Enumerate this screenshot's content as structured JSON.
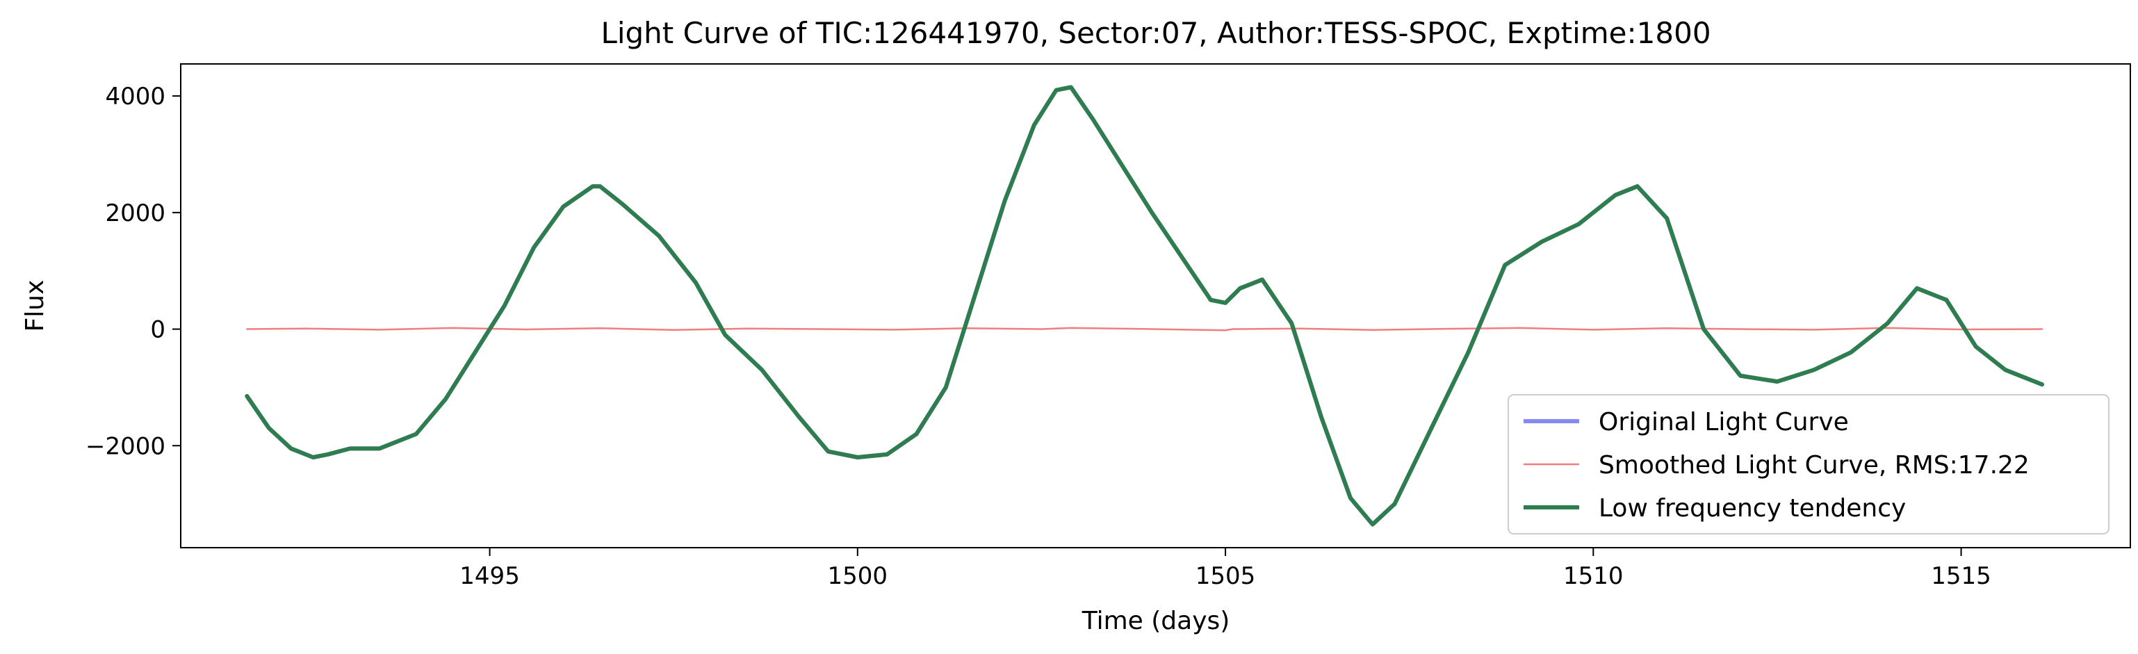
{
  "chart_data": {
    "type": "line",
    "title": "Light Curve of TIC:126441970, Sector:07, Author:TESS-SPOC, Exptime:1800",
    "xlabel": "Time (days)",
    "ylabel": "Flux",
    "xlim": [
      1490.8,
      1517.3
    ],
    "ylim": [
      -3750,
      4550
    ],
    "xticks": [
      1495,
      1500,
      1505,
      1510,
      1515
    ],
    "xtick_labels": [
      "1495",
      "1500",
      "1505",
      "1510",
      "1515"
    ],
    "yticks": [
      -2000,
      0,
      2000,
      4000
    ],
    "ytick_labels": [
      "−2000",
      "0",
      "2000",
      "4000"
    ],
    "grid": false,
    "legend_position": "lower-right",
    "series": [
      {
        "name": "Original Light Curve",
        "color": "#7b7bf0",
        "x": [
          1491.7,
          1492.0,
          1492.3,
          1492.6,
          1492.8,
          1493.1,
          1493.5,
          1494.0,
          1494.4,
          1494.8,
          1495.2,
          1495.6,
          1496.0,
          1496.4,
          1496.5,
          1496.8,
          1497.3,
          1497.8,
          1498.2,
          1498.7,
          1499.2,
          1499.6,
          1500.0,
          1500.4,
          1500.8,
          1501.2,
          1501.6,
          1502.0,
          1502.4,
          1502.7,
          1502.9,
          1503.2,
          1504.0,
          1504.8,
          1505.0,
          1505.2,
          1505.5,
          1505.9,
          1506.3,
          1506.7,
          1507.0,
          1507.3,
          1507.8,
          1508.3,
          1508.8,
          1509.3,
          1509.8,
          1510.3,
          1510.6,
          1511.0,
          1511.5,
          1512.0,
          1512.5,
          1513.0,
          1513.5,
          1514.0,
          1514.4,
          1514.8,
          1515.2,
          1515.6,
          1516.1
        ],
        "y": [
          -1150,
          -1700,
          -2050,
          -2200,
          -2150,
          -2050,
          -2050,
          -1800,
          -1200,
          -400,
          400,
          1400,
          2100,
          2450,
          2450,
          2150,
          1600,
          800,
          -100,
          -700,
          -1500,
          -2100,
          -2200,
          -2150,
          -1800,
          -1000,
          600,
          2200,
          3500,
          4100,
          4150,
          3600,
          2000,
          500,
          450,
          700,
          850,
          100,
          -1500,
          -2900,
          -3350,
          -3000,
          -1700,
          -400,
          1100,
          1500,
          1800,
          2300,
          2450,
          1900,
          0,
          -800,
          -900,
          -700,
          -400,
          100,
          700,
          500,
          -300,
          -700,
          -950
        ]
      },
      {
        "name": "Smoothed Light Curve, RMS:17.22",
        "color": "#f27d7d",
        "x": [
          1491.7,
          1492.5,
          1493.5,
          1494.5,
          1495.5,
          1496.5,
          1497.5,
          1498.5,
          1499.5,
          1500.5,
          1501.5,
          1502.5,
          1502.9,
          1504.0,
          1505.0,
          1505.1,
          1506.0,
          1507.0,
          1508.0,
          1509.0,
          1510.0,
          1511.0,
          1512.0,
          1513.0,
          1514.0,
          1515.0,
          1516.1
        ],
        "y": [
          0,
          10,
          -10,
          20,
          -5,
          15,
          -15,
          10,
          0,
          -10,
          15,
          0,
          20,
          0,
          -20,
          0,
          10,
          -15,
          5,
          20,
          -10,
          15,
          0,
          -10,
          20,
          -5,
          0
        ]
      },
      {
        "name": "Low frequency tendency",
        "color": "#2e7d4e",
        "x": [
          1491.7,
          1492.0,
          1492.3,
          1492.6,
          1492.8,
          1493.1,
          1493.5,
          1494.0,
          1494.4,
          1494.8,
          1495.2,
          1495.6,
          1496.0,
          1496.4,
          1496.5,
          1496.8,
          1497.3,
          1497.8,
          1498.2,
          1498.7,
          1499.2,
          1499.6,
          1500.0,
          1500.4,
          1500.8,
          1501.2,
          1501.6,
          1502.0,
          1502.4,
          1502.7,
          1502.9,
          1503.2,
          1504.0,
          1504.8,
          1505.0,
          1505.2,
          1505.5,
          1505.9,
          1506.3,
          1506.7,
          1507.0,
          1507.3,
          1507.8,
          1508.3,
          1508.8,
          1509.3,
          1509.8,
          1510.3,
          1510.6,
          1511.0,
          1511.5,
          1512.0,
          1512.5,
          1513.0,
          1513.5,
          1514.0,
          1514.4,
          1514.8,
          1515.2,
          1515.6,
          1516.1
        ],
        "y": [
          -1150,
          -1700,
          -2050,
          -2200,
          -2150,
          -2050,
          -2050,
          -1800,
          -1200,
          -400,
          400,
          1400,
          2100,
          2450,
          2450,
          2150,
          1600,
          800,
          -100,
          -700,
          -1500,
          -2100,
          -2200,
          -2150,
          -1800,
          -1000,
          600,
          2200,
          3500,
          4100,
          4150,
          3600,
          2000,
          500,
          450,
          700,
          850,
          100,
          -1500,
          -2900,
          -3350,
          -3000,
          -1700,
          -400,
          1100,
          1500,
          1800,
          2300,
          2450,
          1900,
          0,
          -800,
          -900,
          -700,
          -400,
          100,
          700,
          500,
          -300,
          -700,
          -950
        ]
      }
    ]
  }
}
